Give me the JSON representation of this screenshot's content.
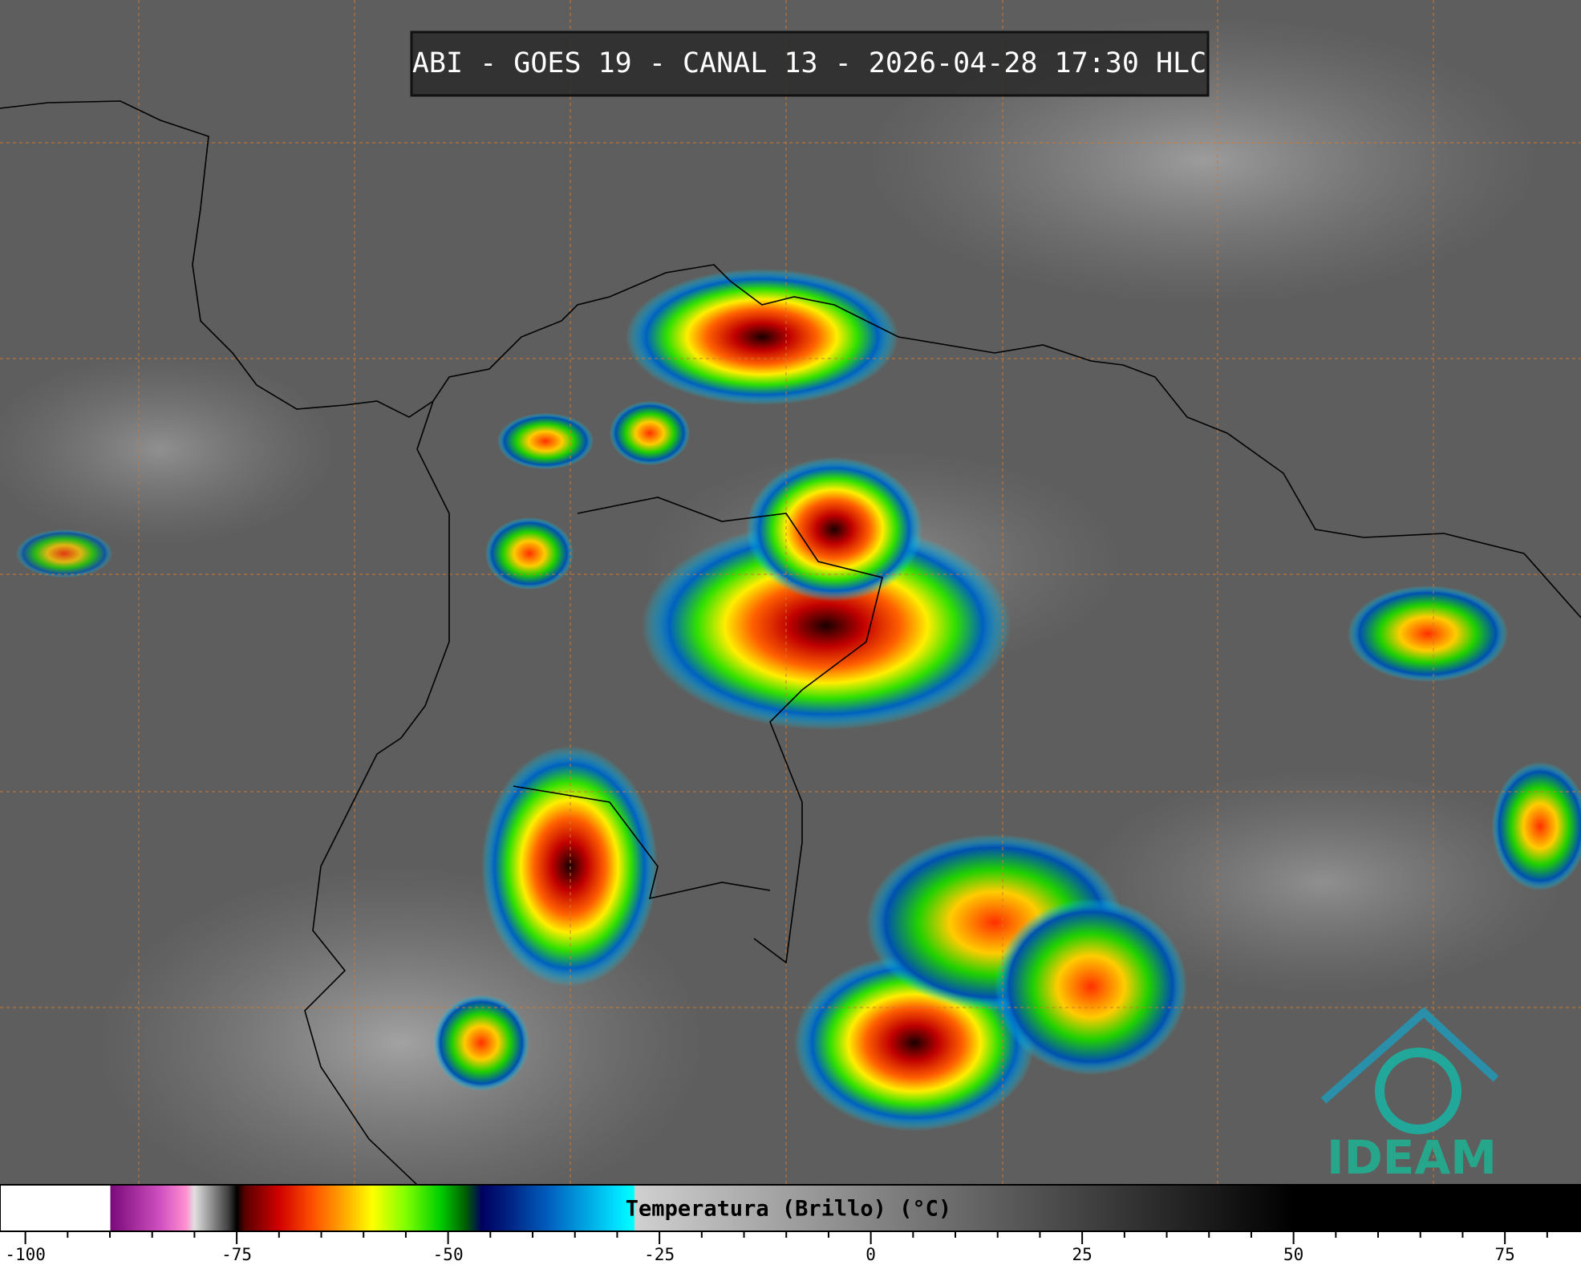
{
  "header": {
    "title": "ABI - GOES 19 - CANAL 13 - 2026-04-28 17:30 HLC"
  },
  "logo": {
    "text": "IDEAM"
  },
  "colorbar": {
    "label": "Temperatura (Brillo) (°C)",
    "xlim": [
      -103,
      84
    ],
    "ticks": [
      -100,
      -75,
      -50,
      -25,
      0,
      25,
      50,
      75
    ],
    "minor_ticks": [
      -95,
      -90,
      -85,
      -80,
      -70,
      -65,
      -60,
      -55,
      -45,
      -40,
      -35,
      -30,
      -20,
      -15,
      -10,
      -5,
      5,
      10,
      15,
      20,
      30,
      35,
      40,
      45,
      55,
      60,
      65,
      70,
      80
    ],
    "colormap": [
      {
        "value": -103,
        "color": "#ffffff"
      },
      {
        "value": -90,
        "color": "#ffffff"
      },
      {
        "value": -89.9,
        "color": "#7a0a7a"
      },
      {
        "value": -84,
        "color": "#d050c0"
      },
      {
        "value": -81,
        "color": "#ff90d0"
      },
      {
        "value": -80,
        "color": "#e0e0e0"
      },
      {
        "value": -76,
        "color": "#404040"
      },
      {
        "value": -75,
        "color": "#000000"
      },
      {
        "value": -74,
        "color": "#5a0000"
      },
      {
        "value": -70,
        "color": "#d00000"
      },
      {
        "value": -66,
        "color": "#ff5000"
      },
      {
        "value": -62,
        "color": "#ffb000"
      },
      {
        "value": -59,
        "color": "#ffff00"
      },
      {
        "value": -55,
        "color": "#80ff00"
      },
      {
        "value": -51,
        "color": "#00d000"
      },
      {
        "value": -48,
        "color": "#006000"
      },
      {
        "value": -46,
        "color": "#000060"
      },
      {
        "value": -43,
        "color": "#002080"
      },
      {
        "value": -38,
        "color": "#0060c0"
      },
      {
        "value": -30,
        "color": "#00e0ff"
      },
      {
        "value": -28,
        "color": "#00ffff"
      },
      {
        "value": -27.9,
        "color": "#d0d0d0"
      },
      {
        "value": 50,
        "color": "#000000"
      },
      {
        "value": 84,
        "color": "#000000"
      }
    ]
  }
}
